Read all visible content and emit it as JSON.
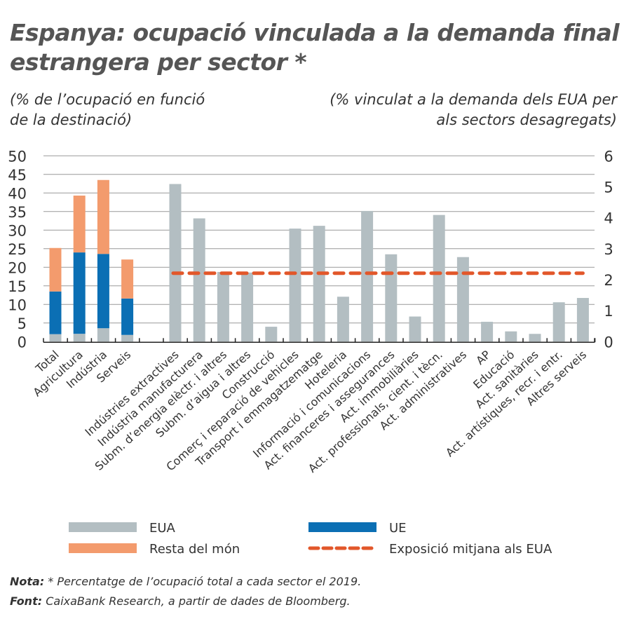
{
  "title": "Espanya: ocupació vinculada a la demanda final estrangera per sector *",
  "subtitle_left": "(% de l’ocupació en funció de la destinació)",
  "subtitle_right": "(% vinculat a la demanda dels EUA per als sectors desagregats)",
  "note_label": "Nota:",
  "note_text": "* Percentatge de l’ocupació total a cada sector el 2019.",
  "source_label": "Font:",
  "source_text": "CaixaBank Research, a partir de dades de Bloomberg.",
  "chart_data": {
    "type": "bar",
    "left_axis": {
      "ylim": [
        0,
        50
      ],
      "ticks": [
        0,
        5,
        10,
        15,
        20,
        25,
        30,
        35,
        40,
        45,
        50
      ]
    },
    "right_axis": {
      "ylim": [
        0,
        6
      ],
      "ticks": [
        0,
        1,
        2,
        3,
        4,
        5,
        6
      ]
    },
    "grid": true,
    "legend_placement": "bottom",
    "colors": {
      "EUA": "#b3bec2",
      "UE": "#0b6fb4",
      "Resta del món": "#f39b6d",
      "Exposició mitjana als EUA": "#e2572a"
    },
    "stacked": {
      "categories": [
        "Total",
        "Agricultura",
        "Indústria",
        "Serveis"
      ],
      "series": [
        {
          "name": "EUA",
          "values": [
            2.0,
            2.1,
            3.6,
            1.8
          ]
        },
        {
          "name": "UE",
          "values": [
            11.5,
            21.9,
            20.0,
            9.8
          ]
        },
        {
          "name": "Resta del món",
          "values": [
            11.7,
            15.3,
            19.9,
            10.5
          ]
        }
      ]
    },
    "sectors": {
      "categories": [
        "Indústries extractives",
        "Indústria manufacturera",
        "Subm. d’energia elèctr. i altres",
        "Subm. d’aigua i altres",
        "Construcció",
        "Comerç i reparació de vehicles",
        "Transport i emmagatzematge",
        "Hoteleria",
        "Informació i comunicacions",
        "Act. financeres i assegurances",
        "Act. immobiliàries",
        "Act. professionals, cient. i tècn.",
        "Act. administratives",
        "AP",
        "Educació",
        "Act. sanitàries",
        "Act. artístiques, recr. i entr.",
        "Altres serveis"
      ],
      "series": [
        {
          "name": "EUA",
          "values": [
            5.09,
            3.98,
            2.25,
            2.23,
            0.48,
            3.65,
            3.74,
            1.45,
            4.22,
            2.82,
            0.81,
            4.09,
            2.73,
            0.64,
            0.33,
            0.25,
            1.27,
            1.41
          ]
        }
      ],
      "average": {
        "name": "Exposició mitjana als EUA",
        "value": 2.21
      }
    },
    "legend": [
      "EUA",
      "UE",
      "Resta del món",
      "Exposició mitjana als EUA"
    ]
  }
}
